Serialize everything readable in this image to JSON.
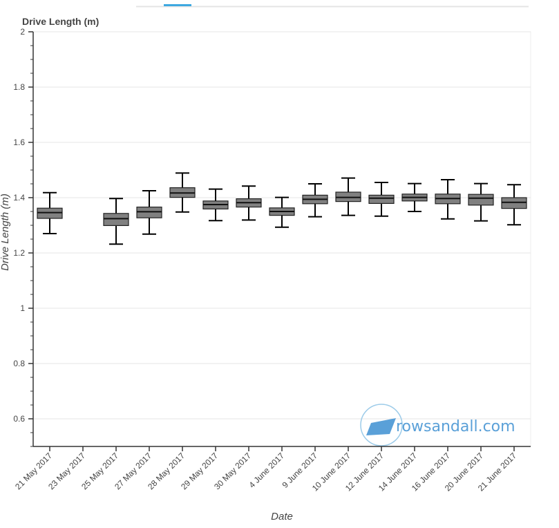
{
  "chart_data": {
    "type": "boxplot",
    "title": "Drive Length (m)",
    "xlabel": "Date",
    "ylabel": "Drive Length (m)",
    "ylim": [
      0.5,
      2.0
    ],
    "yticks": [
      0.6,
      0.8,
      1,
      1.2,
      1.4,
      1.6,
      1.8,
      2
    ],
    "ytick_labels": [
      "0.6",
      "0.8",
      "1",
      "1.2",
      "1.4",
      "1.6",
      "1.8",
      "2"
    ],
    "grid": "horizontal",
    "categories": [
      "21 May 2017",
      "23 May 2017",
      "25 May 2017",
      "27 May 2017",
      "28 May 2017",
      "29 May 2017",
      "30 May 2017",
      "4 June 2017",
      "9 June 2017",
      "10 June 2017",
      "12 June 2017",
      "14 June 2017",
      "16 June 2017",
      "20 June 2017",
      "21 June 2017"
    ],
    "boxes": [
      {
        "low": 1.27,
        "q1": 1.325,
        "median": 1.346,
        "q3": 1.362,
        "high": 1.418
      },
      null,
      {
        "low": 1.232,
        "q1": 1.299,
        "median": 1.324,
        "q3": 1.343,
        "high": 1.397
      },
      {
        "low": 1.268,
        "q1": 1.327,
        "median": 1.349,
        "q3": 1.366,
        "high": 1.425
      },
      {
        "low": 1.348,
        "q1": 1.401,
        "median": 1.417,
        "q3": 1.436,
        "high": 1.489
      },
      {
        "low": 1.317,
        "q1": 1.359,
        "median": 1.375,
        "q3": 1.388,
        "high": 1.431
      },
      {
        "low": 1.319,
        "q1": 1.366,
        "median": 1.382,
        "q3": 1.396,
        "high": 1.442
      },
      {
        "low": 1.293,
        "q1": 1.336,
        "median": 1.35,
        "q3": 1.363,
        "high": 1.401
      },
      {
        "low": 1.331,
        "q1": 1.378,
        "median": 1.394,
        "q3": 1.409,
        "high": 1.45
      },
      {
        "low": 1.336,
        "q1": 1.386,
        "median": 1.401,
        "q3": 1.42,
        "high": 1.471
      },
      {
        "low": 1.333,
        "q1": 1.379,
        "median": 1.398,
        "q3": 1.409,
        "high": 1.455
      },
      {
        "low": 1.35,
        "q1": 1.388,
        "median": 1.401,
        "q3": 1.413,
        "high": 1.451
      },
      {
        "low": 1.323,
        "q1": 1.378,
        "median": 1.397,
        "q3": 1.413,
        "high": 1.465
      },
      {
        "low": 1.316,
        "q1": 1.373,
        "median": 1.398,
        "q3": 1.412,
        "high": 1.451
      },
      {
        "low": 1.302,
        "q1": 1.361,
        "median": 1.383,
        "q3": 1.4,
        "high": 1.447
      }
    ],
    "box_color": "#808080",
    "grid_color": "#e6e6e6"
  },
  "watermark": {
    "text": "rowsandall.com",
    "color": "#5aa0d8"
  }
}
